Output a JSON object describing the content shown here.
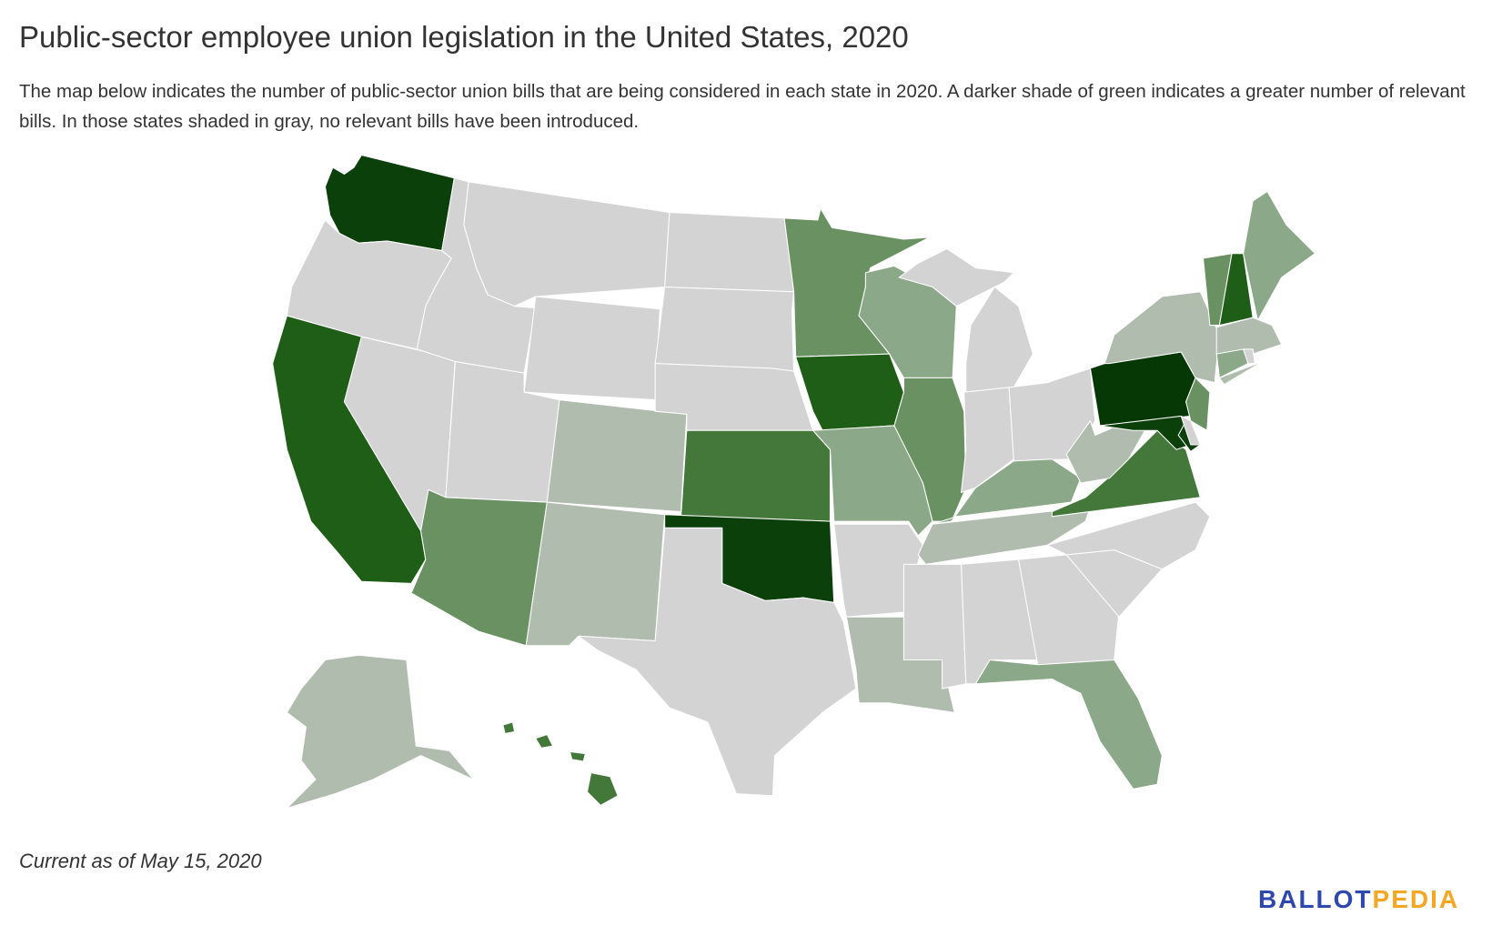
{
  "title": "Public-sector employee union legislation in the United States, 2020",
  "subtitle": "The map below indicates the number of public-sector union bills that are being considered in each state in 2020. A darker shade of green indicates a greater number of relevant bills. In those states shaded in gray, no relevant bills have been introduced.",
  "footnote": "Current as of May 15, 2020",
  "logo": {
    "part1": "BALLOT",
    "part2": "PEDIA",
    "color1": "#2f48ad",
    "color2": "#f5a623"
  },
  "shade_colors": [
    "#d3d3d3",
    "#b0bcae",
    "#8ba888",
    "#6a9162",
    "#43783a",
    "#1e5e16",
    "#0b400a",
    "#063805"
  ],
  "states": {
    "WA": 6,
    "OR": 0,
    "CA": 5,
    "NV": 0,
    "ID": 0,
    "MT": 0,
    "WY": 0,
    "UT": 0,
    "CO": 1,
    "AZ": 3,
    "NM": 1,
    "ND": 0,
    "SD": 0,
    "NE": 0,
    "KS": 4,
    "OK": 6,
    "TX": 0,
    "MN": 3,
    "IA": 5,
    "MO": 2,
    "AR": 0,
    "LA": 1,
    "WI": 2,
    "IL": 3,
    "MI": 0,
    "IN": 0,
    "OH": 0,
    "KY": 2,
    "TN": 1,
    "MS": 0,
    "AL": 0,
    "GA": 0,
    "FL": 2,
    "SC": 0,
    "NC": 0,
    "VA": 4,
    "WV": 1,
    "PA": 7,
    "NY": 1,
    "NJ": 3,
    "MD": 6,
    "DE": 0,
    "VT": 3,
    "NH": 5,
    "ME": 2,
    "MA": 1,
    "CT": 2,
    "RI": 0,
    "AK": 1,
    "HI": 4
  }
}
